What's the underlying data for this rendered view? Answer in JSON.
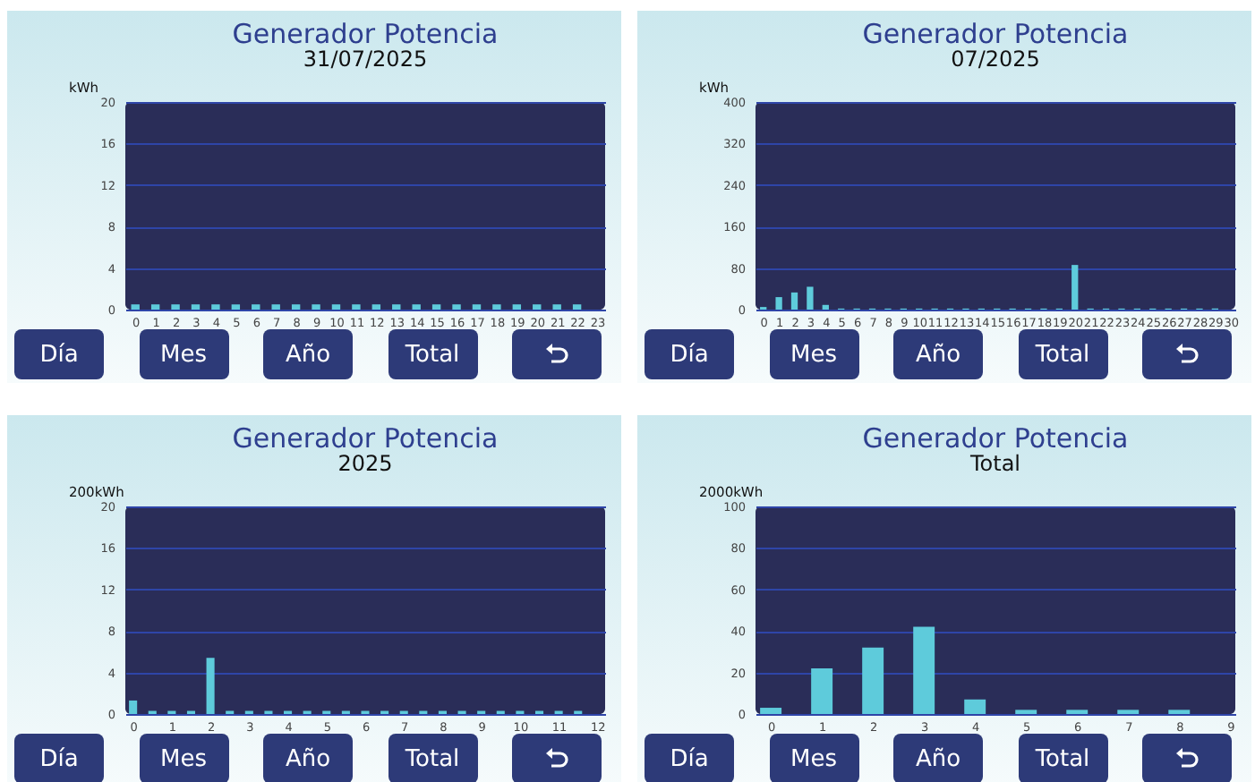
{
  "chart_data": [
    {
      "type": "bar",
      "title": "Generador Potencia",
      "subtitle": "31/07/2025",
      "ylabel": "kWh",
      "color": "#5ecbdb",
      "x": [
        0,
        1,
        2,
        3,
        4,
        5,
        6,
        7,
        8,
        9,
        10,
        11,
        12,
        13,
        14,
        15,
        16,
        17,
        18,
        19,
        20,
        21,
        22
      ],
      "values": [
        0.5,
        0.5,
        0.5,
        0.5,
        0.5,
        0.5,
        0.5,
        0.5,
        0.5,
        0.5,
        0.5,
        0.5,
        0.5,
        0.5,
        0.5,
        0.5,
        0.5,
        0.5,
        0.5,
        0.5,
        0.5,
        0.5,
        0.5
      ],
      "xlim": [
        -0.5,
        23.4
      ],
      "xticks": [
        0,
        1,
        2,
        3,
        4,
        5,
        6,
        7,
        8,
        9,
        10,
        11,
        12,
        13,
        14,
        15,
        16,
        17,
        18,
        19,
        20,
        21,
        22,
        23
      ],
      "ylim": [
        0,
        20
      ],
      "yticks": [
        0,
        4,
        8,
        12,
        16,
        20
      ],
      "grid": "y",
      "annotations": [
        "Día",
        "Mes",
        "Año",
        "Total"
      ]
    },
    {
      "type": "bar",
      "title": "Generador Potencia",
      "subtitle": "07/2025",
      "ylabel": "kWh",
      "color": "#5ecbdb",
      "x": [
        0,
        1,
        2,
        3,
        4,
        5,
        6,
        7,
        8,
        9,
        10,
        11,
        12,
        13,
        14,
        15,
        16,
        17,
        18,
        19,
        20,
        21,
        22,
        23,
        24,
        25,
        26,
        27,
        28,
        29
      ],
      "values": [
        5,
        24,
        33,
        44,
        9,
        2,
        2,
        2,
        2,
        2,
        2,
        2,
        2,
        2,
        2,
        2,
        2,
        2,
        2,
        2,
        86,
        2,
        2,
        2,
        2,
        2,
        2,
        2,
        2,
        2
      ],
      "xlim": [
        -0.5,
        30.3
      ],
      "xticks": [
        0,
        1,
        2,
        3,
        4,
        5,
        6,
        7,
        8,
        9,
        10,
        11,
        12,
        13,
        14,
        15,
        16,
        17,
        18,
        19,
        20,
        21,
        22,
        23,
        24,
        25,
        26,
        27,
        28,
        29,
        30
      ],
      "ylim": [
        0,
        400
      ],
      "yticks": [
        0,
        80,
        160,
        240,
        320,
        400
      ],
      "grid": "y",
      "annotations": [
        "Día",
        "Mes",
        "Año",
        "Total"
      ]
    },
    {
      "type": "bar",
      "title": "Generador Potencia",
      "subtitle": "2025",
      "ylabel": "200kWh",
      "color": "#5ecbdb",
      "x": [
        0,
        0.5,
        1,
        1.5,
        2,
        2.5,
        3,
        3.5,
        4,
        4.5,
        5,
        5.5,
        6,
        6.5,
        7,
        7.5,
        8,
        8.5,
        9,
        9.5,
        10,
        10.5,
        11,
        11.5
      ],
      "values": [
        1.3,
        0.3,
        0.3,
        0.3,
        5.4,
        0.3,
        0.3,
        0.3,
        0.3,
        0.3,
        0.3,
        0.3,
        0.3,
        0.3,
        0.3,
        0.3,
        0.3,
        0.3,
        0.3,
        0.3,
        0.3,
        0.3,
        0.3,
        0.3
      ],
      "xlim": [
        -0.2,
        12.2
      ],
      "xticks": [
        0,
        1,
        2,
        3,
        4,
        5,
        6,
        7,
        8,
        9,
        10,
        11,
        12
      ],
      "ylim": [
        0,
        20
      ],
      "yticks": [
        0,
        4,
        8,
        12,
        16,
        20
      ],
      "grid": "y",
      "annotations": [
        "Día",
        "Mes",
        "Año",
        "Total"
      ]
    },
    {
      "type": "bar",
      "title": "Generador Potencia",
      "subtitle": "Total",
      "ylabel": "2000kWh",
      "color": "#5ecbdb",
      "x": [
        0,
        1,
        2,
        3,
        4,
        5,
        6,
        7,
        8
      ],
      "values": [
        3,
        22,
        32,
        42,
        7,
        2,
        2,
        2,
        2
      ],
      "xlim": [
        -0.3,
        9.1
      ],
      "xticks": [
        0,
        1,
        2,
        3,
        4,
        5,
        6,
        7,
        8,
        9
      ],
      "ylim": [
        0,
        100
      ],
      "yticks": [
        0,
        20,
        40,
        60,
        80,
        100
      ],
      "grid": "y",
      "annotations": [
        "Día",
        "Mes",
        "Año",
        "Total"
      ]
    }
  ]
}
